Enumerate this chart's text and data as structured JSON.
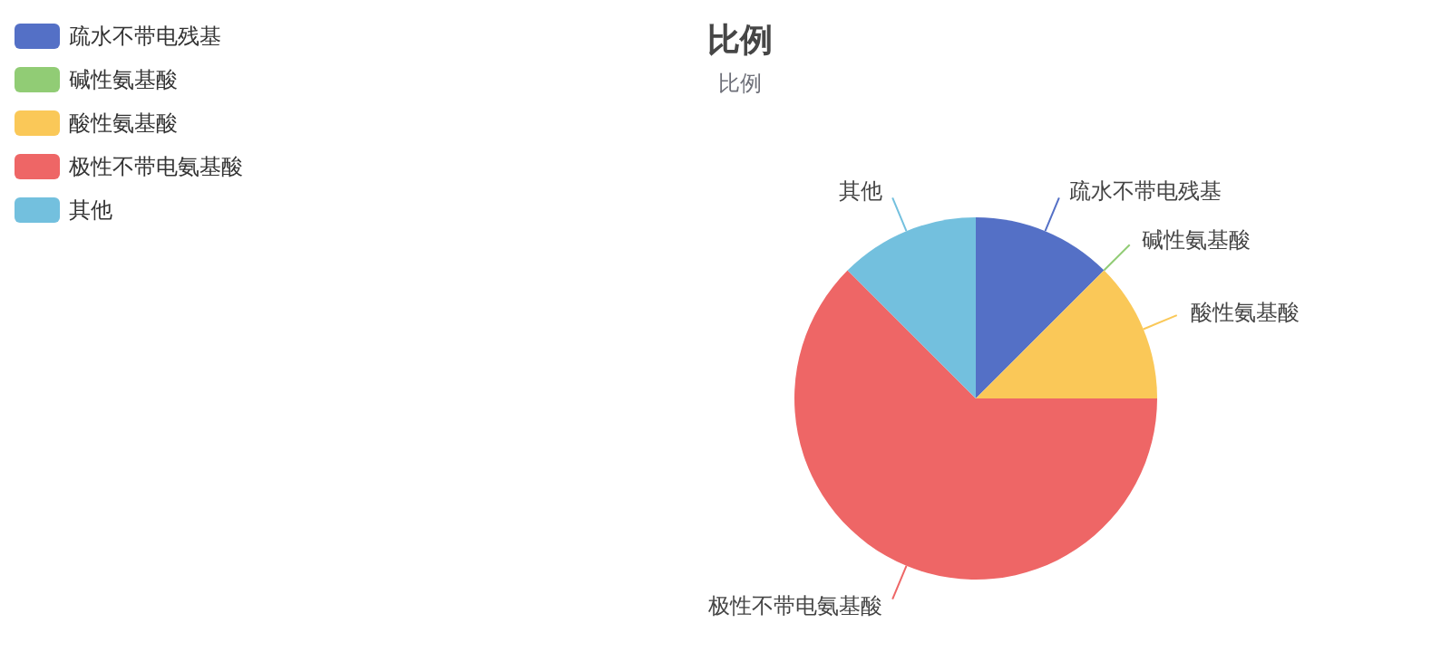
{
  "chart_data": {
    "type": "pie",
    "title": "比例",
    "subtitle": "比例",
    "categories": [
      "疏水不带电残基",
      "碱性氨基酸",
      "酸性氨基酸",
      "极性不带电氨基酸",
      "其他"
    ],
    "values": [
      12.5,
      0,
      12.5,
      62.5,
      12.5
    ],
    "colors": [
      "#5470c6",
      "#91cc75",
      "#fac858",
      "#ee6666",
      "#73c0de"
    ],
    "legend": "top left"
  }
}
